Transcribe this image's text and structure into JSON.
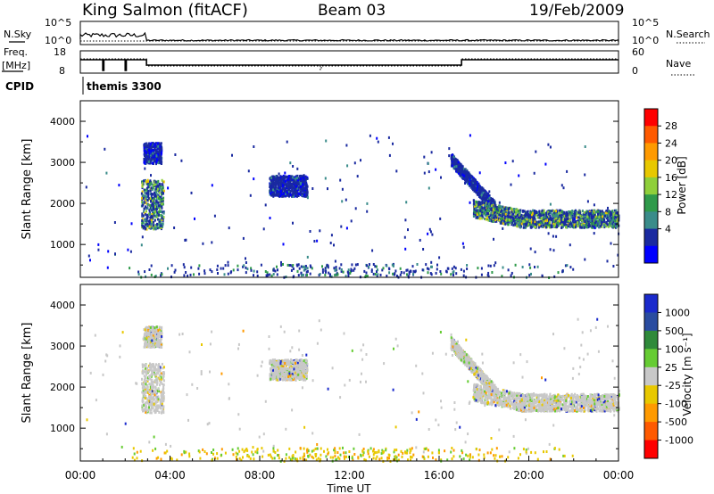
{
  "header": {
    "title": "King Salmon (fitACF)",
    "beam": "Beam 03",
    "date": "19/Feb/2009"
  },
  "status_panels": {
    "nsky_label": "N.Sky",
    "nsearch_label": "N.Search",
    "freq_label_1": "Freq.",
    "freq_label_2": "[MHz]",
    "nave_label": "Nave",
    "cpid_label": "CPID",
    "cpid_value": "themis 3300",
    "nsky_ticks": [
      "10^5",
      "10^0"
    ],
    "nsearch_ticks": [
      "10^5",
      "10^0"
    ],
    "freq_ticks": [
      "18",
      "8"
    ],
    "nave_ticks": [
      "60",
      "0"
    ]
  },
  "power_colorbar": {
    "label": "Power [dB]",
    "ticks": [
      "28",
      "24",
      "20",
      "16",
      "12",
      "8",
      "4"
    ],
    "colors": [
      "#ff0000",
      "#ff5a00",
      "#ff9a00",
      "#e8c800",
      "#8fcf3a",
      "#2f9a4a",
      "#3a8c8a",
      "#1a2aa0",
      "#0000ff"
    ]
  },
  "velocity_colorbar": {
    "label": "Velocity [m s⁻¹]",
    "ticks": [
      "1000",
      "500",
      "100",
      "25",
      "-25",
      "-100",
      "-500",
      "-1000"
    ],
    "colors": [
      "#1a2acc",
      "#2a4ca0",
      "#2f8a3a",
      "#66cc33",
      "#c8c8c8",
      "#e8c800",
      "#ff9a00",
      "#ff5a00",
      "#ff0000"
    ]
  },
  "chart_data": [
    {
      "type": "heatmap",
      "panel": "power",
      "ylabel": "Slant Range [km]",
      "yticks": [
        "1000",
        "2000",
        "3000",
        "4000"
      ],
      "ylim": [
        200,
        4500
      ],
      "xlim": [
        0,
        24
      ],
      "regions": [
        {
          "t": [
            2.7,
            3.7
          ],
          "r": [
            1400,
            2600
          ],
          "level": "mixed-high"
        },
        {
          "t": [
            2.8,
            3.6
          ],
          "r": [
            3000,
            3500
          ],
          "level": "low"
        },
        {
          "t": [
            8.4,
            10.1
          ],
          "r": [
            2200,
            2700
          ],
          "level": "low"
        },
        {
          "t": [
            16.5,
            18.5
          ],
          "r": [
            1900,
            3100
          ],
          "level": "low"
        },
        {
          "t": [
            17.5,
            24.0
          ],
          "r": [
            1400,
            2000
          ],
          "level": "mixed-high"
        }
      ]
    },
    {
      "type": "heatmap",
      "panel": "velocity",
      "xlabel": "Time UT",
      "ylabel": "Slant Range [km]",
      "xticks": [
        "00:00",
        "04:00",
        "08:00",
        "12:00",
        "16:00",
        "20:00",
        "00:00"
      ],
      "yticks": [
        "1000",
        "2000",
        "3000",
        "4000"
      ],
      "ylim": [
        200,
        4500
      ],
      "xlim": [
        0,
        24
      ],
      "regions": [
        {
          "t": [
            2.7,
            3.7
          ],
          "r": [
            1400,
            2600
          ],
          "level": "near-zero"
        },
        {
          "t": [
            2.8,
            3.6
          ],
          "r": [
            3000,
            3500
          ],
          "level": "near-zero"
        },
        {
          "t": [
            8.4,
            10.1
          ],
          "r": [
            2200,
            2700
          ],
          "level": "near-zero"
        },
        {
          "t": [
            16.5,
            18.5
          ],
          "r": [
            1900,
            3100
          ],
          "level": "near-zero"
        },
        {
          "t": [
            17.5,
            24.0
          ],
          "r": [
            1400,
            2000
          ],
          "level": "near-zero"
        }
      ]
    }
  ]
}
